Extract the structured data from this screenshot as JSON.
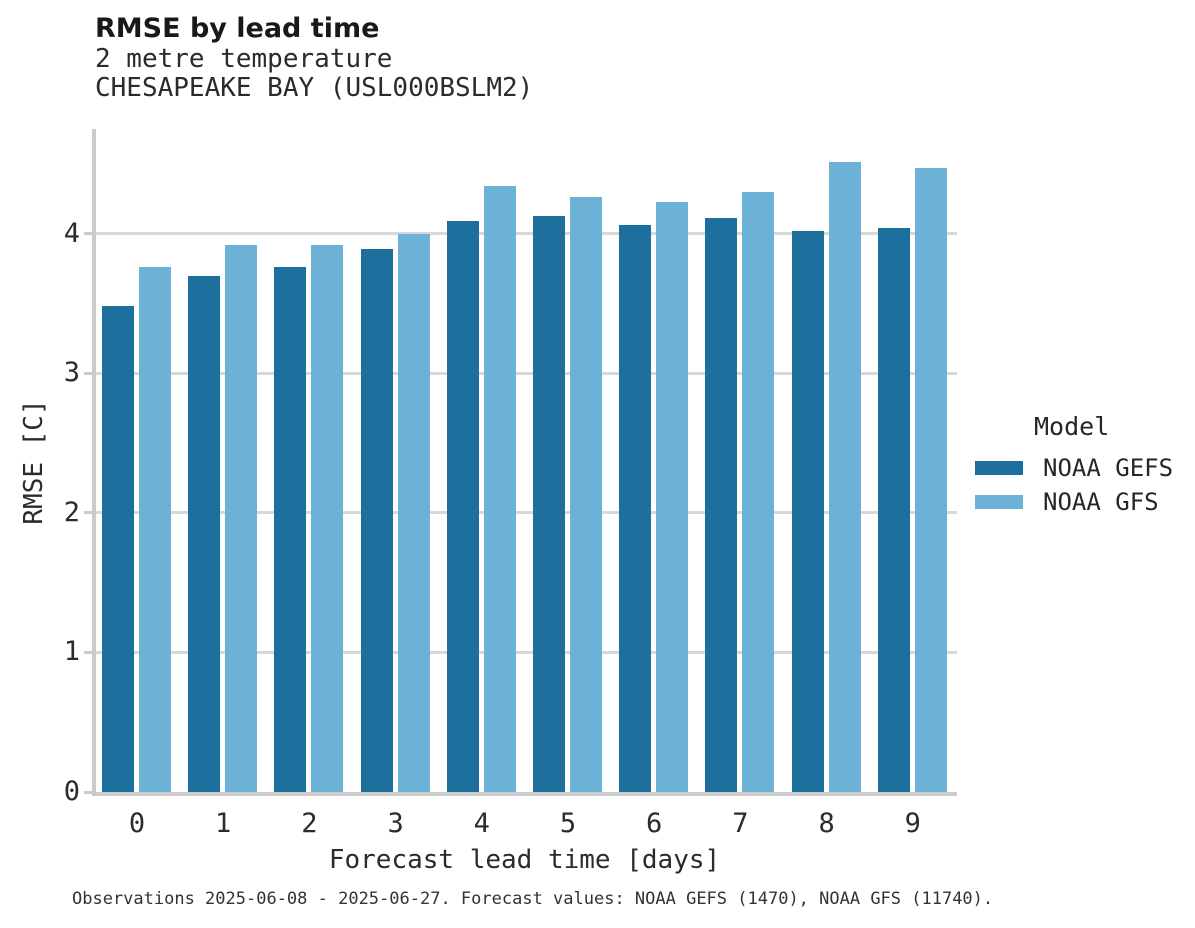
{
  "header": {
    "title": "RMSE by lead time",
    "subtitle_line1": "2 metre temperature",
    "subtitle_line2": "CHESAPEAKE BAY (USL000BSLM2)"
  },
  "legend": {
    "title": "Model",
    "entries": [
      {
        "label": "NOAA GEFS",
        "color": "#1d6f9e"
      },
      {
        "label": "NOAA GFS",
        "color": "#6cb1d6"
      }
    ]
  },
  "caption": "Observations 2025-06-08 - 2025-06-27. Forecast values: NOAA GEFS (1470), NOAA GFS (11740).",
  "colors": {
    "noaa_gefs": "#1d6f9e",
    "noaa_gfs": "#6cb1d6",
    "spine": "#cbcbcb",
    "gridline": "#d8d8d8"
  },
  "chart_data": {
    "type": "bar",
    "title": "RMSE by lead time",
    "subtitle": [
      "2 metre temperature",
      "CHESAPEAKE BAY (USL000BSLM2)"
    ],
    "xlabel": "Forecast lead time [days]",
    "ylabel": "RMSE [C]",
    "categories": [
      "0",
      "1",
      "2",
      "3",
      "4",
      "5",
      "6",
      "7",
      "8",
      "9"
    ],
    "series": [
      {
        "name": "NOAA GEFS",
        "color": "#1d6f9e",
        "values": [
          3.48,
          3.7,
          3.76,
          3.89,
          4.09,
          4.13,
          4.06,
          4.11,
          4.02,
          4.04
        ]
      },
      {
        "name": "NOAA GFS",
        "color": "#6cb1d6",
        "values": [
          3.76,
          3.92,
          3.92,
          4.0,
          4.34,
          4.26,
          4.23,
          4.3,
          4.51,
          4.47
        ]
      }
    ],
    "yticks": [
      0,
      1,
      2,
      3,
      4
    ],
    "ylim": [
      0,
      4.75
    ],
    "grid": "horizontal",
    "legend_title": "Model",
    "legend_position": "right"
  }
}
